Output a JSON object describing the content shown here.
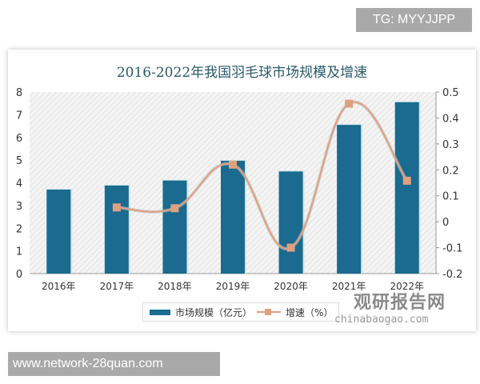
{
  "watermark_top": "TG: MYYJJPP",
  "watermark_bottom": "www.network-28quan.com",
  "logo": {
    "cn": "观研报告网",
    "en": "chinabaogao.com"
  },
  "chart_data": {
    "type": "bar+line",
    "title": "2016-2022年我国羽毛球市场规模及增速",
    "categories": [
      "2016年",
      "2017年",
      "2018年",
      "2019年",
      "2020年",
      "2021年",
      "2022年"
    ],
    "series": [
      {
        "name": "市场规模（亿元）",
        "type": "bar",
        "axis": "left",
        "values": [
          3.7,
          3.88,
          4.1,
          4.97,
          4.5,
          6.55,
          7.55
        ],
        "color": "#1a6b8f"
      },
      {
        "name": "增速（%）",
        "type": "line",
        "axis": "right",
        "values": [
          null,
          0.055,
          0.052,
          0.22,
          -0.1,
          0.455,
          0.158
        ],
        "color": "#e0a07e"
      }
    ],
    "left_axis": {
      "ylim": [
        0,
        8
      ],
      "ticks": [
        "0",
        "1",
        "2",
        "3",
        "4",
        "5",
        "6",
        "7",
        "8"
      ]
    },
    "right_axis": {
      "ylim": [
        -0.2,
        0.5
      ],
      "ticks": [
        "-0.2",
        "-0.1",
        "0",
        "0.1",
        "0.2",
        "0.3",
        "0.4",
        "0.5"
      ]
    },
    "legend": "bottom",
    "grid": false
  }
}
